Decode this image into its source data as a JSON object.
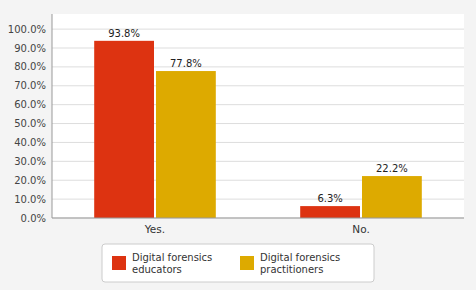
{
  "chart_data": {
    "type": "bar",
    "categories": [
      "Yes.",
      "No."
    ],
    "series": [
      {
        "name": "Digital forensics\neducators",
        "color": "#DD3311",
        "values": [
          93.8,
          6.3
        ],
        "value_labels": [
          "93.8%",
          "6.3%"
        ]
      },
      {
        "name": "Digital forensics\npractitioners",
        "color": "#DDAA00",
        "values": [
          77.8,
          22.2
        ],
        "value_labels": [
          "77.8%",
          "22.2%"
        ]
      }
    ],
    "ylim": [
      0,
      108
    ],
    "yticks": [
      {
        "value": 0,
        "label": "0.0%"
      },
      {
        "value": 10,
        "label": "10.0%"
      },
      {
        "value": 20,
        "label": "20.0%"
      },
      {
        "value": 30,
        "label": "30.0%"
      },
      {
        "value": 40,
        "label": "40.0%"
      },
      {
        "value": 50,
        "label": "50.0%"
      },
      {
        "value": 60,
        "label": "60.0%"
      },
      {
        "value": 70,
        "label": "70.0%"
      },
      {
        "value": 80,
        "label": "80.0%"
      },
      {
        "value": 90,
        "label": "90.0%"
      },
      {
        "value": 100,
        "label": "100.0%"
      }
    ],
    "grid": true,
    "legend": "bottom",
    "data_labels": true
  }
}
